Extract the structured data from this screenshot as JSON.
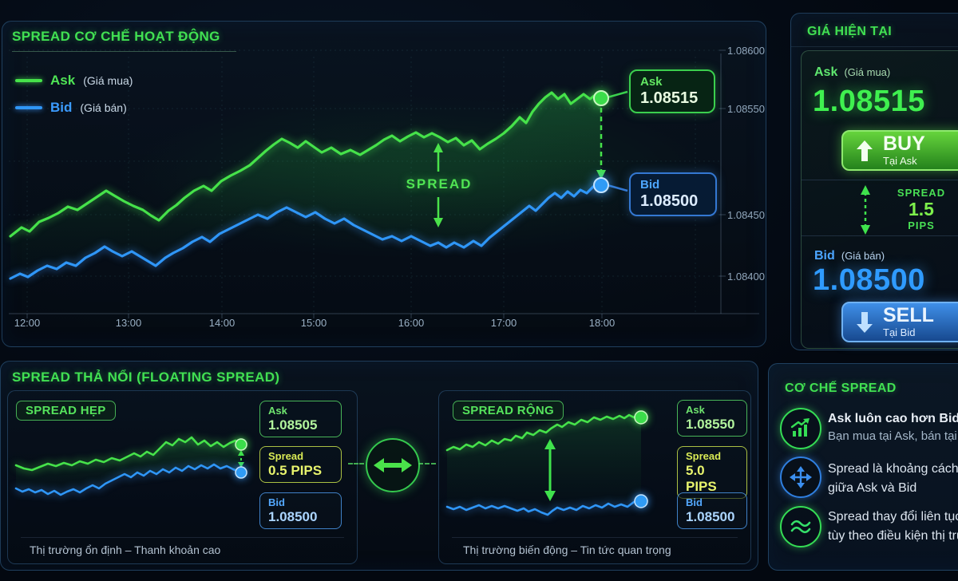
{
  "main_chart": {
    "title": "SPREAD CƠ CHẾ HOẠT ĐỘNG",
    "legend": {
      "ask_label": "Ask",
      "ask_desc": "(Giá mua)",
      "bid_label": "Bid",
      "bid_desc": "(Giá bán)"
    },
    "spread_annotation": "SPREAD",
    "ask_flag": {
      "label": "Ask",
      "value": "1.08515"
    },
    "bid_flag": {
      "label": "Bid",
      "value": "1.08500"
    },
    "y_ticks": [
      "1.08600",
      "1.08550",
      "1.08450",
      "1.08400"
    ],
    "x_ticks": [
      "12:00",
      "13:00",
      "14:00",
      "15:00",
      "16:00",
      "17:00",
      "18:00"
    ]
  },
  "price_panel": {
    "title": "GIÁ HIỆN TẠI",
    "ask_label": "Ask",
    "ask_sub": "(Giá mua)",
    "ask_value": "1.08515",
    "buy_label": "BUY",
    "buy_sub": "Tại Ask",
    "spread_label": "SPREAD",
    "spread_value": "1.5",
    "spread_unit": "PIPS",
    "bid_label": "Bid",
    "bid_sub": "(Giá bán)",
    "bid_value": "1.08500",
    "sell_label": "SELL",
    "sell_sub": "Tại Bid"
  },
  "floating_panel": {
    "title": "SPREAD THẢ NỔI (FLOATING SPREAD)",
    "narrow": {
      "badge": "SPREAD HẸP",
      "ask_label": "Ask",
      "ask_value": "1.08505",
      "spread_label": "Spread",
      "spread_value": "0.5 PIPS",
      "bid_label": "Bid",
      "bid_value": "1.08500",
      "caption": "Thị trường ổn định – Thanh khoản cao"
    },
    "wide": {
      "badge": "SPREAD RỘNG",
      "ask_label": "Ask",
      "ask_value": "1.08550",
      "spread_label": "Spread",
      "spread_value": "5.0 PIPS",
      "bid_label": "Bid",
      "bid_value": "1.08500",
      "caption": "Thị trường biến động – Tin tức quan trọng"
    }
  },
  "mechanism_panel": {
    "title": "CƠ CHẾ SPREAD",
    "items": [
      {
        "icon": "growth-chart-icon",
        "line1": "Ask luôn cao hơn Bid",
        "line2": "Bạn mua tại Ask, bán tại B"
      },
      {
        "icon": "cross-arrows-icon",
        "line1": "Spread là khoảng cách",
        "line2": "giữa Ask và Bid"
      },
      {
        "icon": "waves-icon",
        "line1": "Spread thay đổi liên tục",
        "line2": "tùy theo điều kiện thị tru"
      }
    ]
  },
  "colors": {
    "ask_green": "#46e24a",
    "bid_blue": "#2f96f7",
    "title_green": "#41e052",
    "spread_yellow": "#d9ea55",
    "buy_gradient_top": "#66d43c",
    "sell_gradient_top": "#3f8fe8"
  },
  "chart_data": [
    {
      "type": "line",
      "title": "SPREAD CƠ CHẾ HOẠT ĐỘNG",
      "x": [
        "12:00",
        "13:00",
        "14:00",
        "15:00",
        "16:00",
        "17:00",
        "18:00"
      ],
      "ylim": [
        1.084,
        1.086
      ],
      "yticks_shown": [
        "1.08600",
        "1.08550",
        "1.08450",
        "1.08400"
      ],
      "grid": true,
      "legend_position": "top-left",
      "series": [
        {
          "name": "Ask (Giá mua)",
          "color": "#46e24a",
          "values_est": [
            1.08452,
            1.08468,
            1.08486,
            1.08482,
            1.0849,
            1.08502,
            1.08515
          ],
          "end_value": 1.08515
        },
        {
          "name": "Bid (Giá bán)",
          "color": "#2f96f7",
          "values_est": [
            1.08414,
            1.08432,
            1.08455,
            1.08448,
            1.08442,
            1.08468,
            1.085
          ],
          "end_value": 1.085
        }
      ],
      "annotations": [
        "SPREAD",
        "Ask 1.08515",
        "Bid 1.08500"
      ]
    },
    {
      "type": "line",
      "title": "SPREAD HẸP",
      "series": [
        {
          "name": "Ask",
          "end_value": 1.08505
        },
        {
          "name": "Bid",
          "end_value": 1.085
        }
      ],
      "spread_pips": 0.5,
      "caption": "Thị trường ổn định – Thanh khoản cao"
    },
    {
      "type": "line",
      "title": "SPREAD RỘNG",
      "series": [
        {
          "name": "Ask",
          "end_value": 1.0855
        },
        {
          "name": "Bid",
          "end_value": 1.085
        }
      ],
      "spread_pips": 5.0,
      "caption": "Thị trường biến động – Tin tức quan trọng"
    }
  ],
  "render_paths": {
    "main_ask": [
      [
        10,
        269
      ],
      [
        24,
        258
      ],
      [
        34,
        263
      ],
      [
        46,
        251
      ],
      [
        58,
        246
      ],
      [
        70,
        240
      ],
      [
        82,
        232
      ],
      [
        94,
        236
      ],
      [
        106,
        228
      ],
      [
        118,
        220
      ],
      [
        130,
        212
      ],
      [
        140,
        218
      ],
      [
        152,
        225
      ],
      [
        164,
        231
      ],
      [
        176,
        236
      ],
      [
        186,
        243
      ],
      [
        196,
        249
      ],
      [
        208,
        237
      ],
      [
        218,
        230
      ],
      [
        228,
        221
      ],
      [
        240,
        212
      ],
      [
        252,
        206
      ],
      [
        262,
        212
      ],
      [
        274,
        200
      ],
      [
        286,
        193
      ],
      [
        298,
        187
      ],
      [
        310,
        180
      ],
      [
        320,
        171
      ],
      [
        330,
        162
      ],
      [
        340,
        154
      ],
      [
        350,
        147
      ],
      [
        360,
        152
      ],
      [
        370,
        158
      ],
      [
        380,
        150
      ],
      [
        390,
        157
      ],
      [
        400,
        164
      ],
      [
        412,
        158
      ],
      [
        424,
        166
      ],
      [
        436,
        161
      ],
      [
        448,
        167
      ],
      [
        458,
        161
      ],
      [
        468,
        155
      ],
      [
        478,
        148
      ],
      [
        488,
        143
      ],
      [
        498,
        150
      ],
      [
        508,
        144
      ],
      [
        518,
        139
      ],
      [
        528,
        145
      ],
      [
        538,
        140
      ],
      [
        548,
        145
      ],
      [
        558,
        151
      ],
      [
        568,
        146
      ],
      [
        578,
        155
      ],
      [
        588,
        149
      ],
      [
        598,
        160
      ],
      [
        608,
        153
      ],
      [
        618,
        147
      ],
      [
        628,
        140
      ],
      [
        638,
        131
      ],
      [
        648,
        120
      ],
      [
        656,
        127
      ],
      [
        664,
        113
      ],
      [
        672,
        103
      ],
      [
        680,
        95
      ],
      [
        688,
        89
      ],
      [
        696,
        97
      ],
      [
        704,
        91
      ],
      [
        712,
        103
      ],
      [
        720,
        97
      ],
      [
        728,
        91
      ],
      [
        736,
        97
      ],
      [
        744,
        91
      ],
      [
        750,
        96
      ]
    ],
    "main_bid": [
      [
        10,
        322
      ],
      [
        22,
        316
      ],
      [
        32,
        320
      ],
      [
        44,
        312
      ],
      [
        56,
        306
      ],
      [
        68,
        310
      ],
      [
        80,
        302
      ],
      [
        92,
        306
      ],
      [
        104,
        296
      ],
      [
        116,
        290
      ],
      [
        128,
        282
      ],
      [
        138,
        288
      ],
      [
        150,
        294
      ],
      [
        162,
        288
      ],
      [
        172,
        294
      ],
      [
        182,
        300
      ],
      [
        192,
        306
      ],
      [
        204,
        296
      ],
      [
        214,
        290
      ],
      [
        226,
        284
      ],
      [
        238,
        276
      ],
      [
        250,
        270
      ],
      [
        260,
        276
      ],
      [
        272,
        266
      ],
      [
        284,
        260
      ],
      [
        296,
        254
      ],
      [
        308,
        248
      ],
      [
        320,
        242
      ],
      [
        332,
        247
      ],
      [
        344,
        239
      ],
      [
        356,
        233
      ],
      [
        368,
        239
      ],
      [
        380,
        245
      ],
      [
        392,
        239
      ],
      [
        404,
        247
      ],
      [
        416,
        253
      ],
      [
        428,
        247
      ],
      [
        440,
        255
      ],
      [
        452,
        261
      ],
      [
        464,
        267
      ],
      [
        476,
        273
      ],
      [
        488,
        269
      ],
      [
        500,
        275
      ],
      [
        512,
        269
      ],
      [
        524,
        275
      ],
      [
        536,
        281
      ],
      [
        546,
        277
      ],
      [
        556,
        283
      ],
      [
        566,
        277
      ],
      [
        578,
        283
      ],
      [
        590,
        275
      ],
      [
        600,
        281
      ],
      [
        610,
        271
      ],
      [
        620,
        263
      ],
      [
        630,
        255
      ],
      [
        640,
        247
      ],
      [
        650,
        239
      ],
      [
        660,
        231
      ],
      [
        668,
        237
      ],
      [
        676,
        229
      ],
      [
        684,
        221
      ],
      [
        692,
        215
      ],
      [
        700,
        221
      ],
      [
        708,
        213
      ],
      [
        716,
        219
      ],
      [
        724,
        211
      ],
      [
        732,
        215
      ],
      [
        740,
        207
      ],
      [
        750,
        205
      ]
    ],
    "narrow_ask": [
      [
        10,
        93
      ],
      [
        20,
        97
      ],
      [
        30,
        99
      ],
      [
        40,
        95
      ],
      [
        50,
        91
      ],
      [
        60,
        94
      ],
      [
        70,
        90
      ],
      [
        80,
        93
      ],
      [
        90,
        88
      ],
      [
        100,
        91
      ],
      [
        110,
        86
      ],
      [
        120,
        89
      ],
      [
        130,
        84
      ],
      [
        140,
        87
      ],
      [
        150,
        82
      ],
      [
        158,
        78
      ],
      [
        166,
        82
      ],
      [
        174,
        76
      ],
      [
        182,
        80
      ],
      [
        190,
        72
      ],
      [
        198,
        64
      ],
      [
        206,
        68
      ],
      [
        214,
        60
      ],
      [
        222,
        64
      ],
      [
        230,
        58
      ],
      [
        238,
        67
      ],
      [
        246,
        62
      ],
      [
        254,
        69
      ],
      [
        262,
        64
      ],
      [
        270,
        70
      ],
      [
        278,
        65
      ],
      [
        285,
        62
      ],
      [
        292,
        67
      ]
    ],
    "narrow_bid": [
      [
        10,
        122
      ],
      [
        18,
        126
      ],
      [
        26,
        123
      ],
      [
        34,
        127
      ],
      [
        42,
        124
      ],
      [
        50,
        129
      ],
      [
        58,
        125
      ],
      [
        66,
        130
      ],
      [
        74,
        126
      ],
      [
        82,
        123
      ],
      [
        90,
        127
      ],
      [
        98,
        122
      ],
      [
        106,
        118
      ],
      [
        114,
        122
      ],
      [
        122,
        116
      ],
      [
        130,
        112
      ],
      [
        138,
        108
      ],
      [
        146,
        104
      ],
      [
        154,
        108
      ],
      [
        162,
        102
      ],
      [
        170,
        106
      ],
      [
        178,
        100
      ],
      [
        186,
        104
      ],
      [
        194,
        98
      ],
      [
        202,
        102
      ],
      [
        210,
        96
      ],
      [
        218,
        100
      ],
      [
        226,
        94
      ],
      [
        234,
        98
      ],
      [
        242,
        93
      ],
      [
        250,
        97
      ],
      [
        258,
        92
      ],
      [
        266,
        97
      ],
      [
        274,
        94
      ],
      [
        282,
        98
      ],
      [
        292,
        102
      ]
    ],
    "wide_ask": [
      [
        10,
        74
      ],
      [
        18,
        70
      ],
      [
        26,
        73
      ],
      [
        34,
        67
      ],
      [
        42,
        70
      ],
      [
        50,
        64
      ],
      [
        58,
        68
      ],
      [
        66,
        62
      ],
      [
        74,
        66
      ],
      [
        82,
        60
      ],
      [
        90,
        62
      ],
      [
        96,
        56
      ],
      [
        104,
        59
      ],
      [
        110,
        52
      ],
      [
        118,
        55
      ],
      [
        126,
        49
      ],
      [
        134,
        52
      ],
      [
        140,
        47
      ],
      [
        148,
        42
      ],
      [
        154,
        45
      ],
      [
        162,
        39
      ],
      [
        170,
        42
      ],
      [
        178,
        36
      ],
      [
        186,
        39
      ],
      [
        194,
        33
      ],
      [
        202,
        36
      ],
      [
        210,
        32
      ],
      [
        218,
        35
      ],
      [
        226,
        31
      ],
      [
        232,
        34
      ],
      [
        238,
        30
      ],
      [
        244,
        33
      ],
      [
        248,
        30
      ],
      [
        253,
        33
      ]
    ],
    "wide_bid": [
      [
        10,
        145
      ],
      [
        18,
        148
      ],
      [
        26,
        145
      ],
      [
        34,
        149
      ],
      [
        42,
        146
      ],
      [
        50,
        143
      ],
      [
        58,
        147
      ],
      [
        66,
        144
      ],
      [
        74,
        147
      ],
      [
        82,
        144
      ],
      [
        90,
        147
      ],
      [
        98,
        150
      ],
      [
        106,
        147
      ],
      [
        112,
        151
      ],
      [
        120,
        148
      ],
      [
        128,
        152
      ],
      [
        136,
        155
      ],
      [
        142,
        150
      ],
      [
        148,
        146
      ],
      [
        156,
        149
      ],
      [
        164,
        146
      ],
      [
        172,
        149
      ],
      [
        180,
        144
      ],
      [
        188,
        147
      ],
      [
        196,
        143
      ],
      [
        204,
        146
      ],
      [
        212,
        141
      ],
      [
        220,
        145
      ],
      [
        228,
        142
      ],
      [
        236,
        145
      ],
      [
        244,
        139
      ],
      [
        253,
        138
      ]
    ]
  }
}
